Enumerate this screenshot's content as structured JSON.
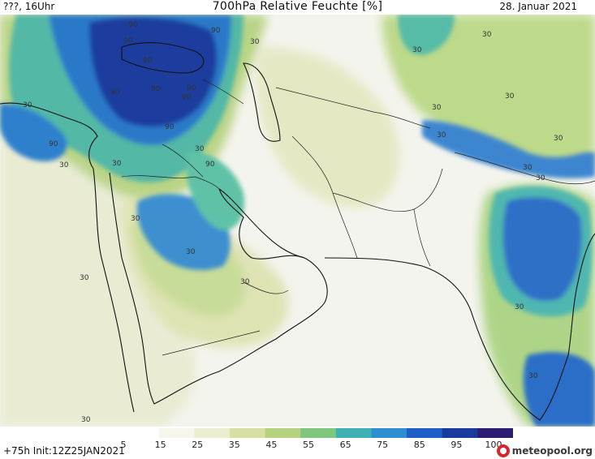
{
  "header": {
    "left": "???, 16Uhr",
    "title": "700hPa Relative Feuchte [%]",
    "date": "28. Januar 2021"
  },
  "footer": {
    "run_info": "+75h Init:12Z25JAN2021",
    "brand": "meteopool.org"
  },
  "legend": {
    "labels": [
      "5",
      "15",
      "25",
      "35",
      "45",
      "55",
      "65",
      "75",
      "85",
      "95",
      "100"
    ],
    "colors": [
      "#ffffff",
      "#f6f6ea",
      "#eceed0",
      "#d9dea3",
      "#b7d27f",
      "#7fc67f",
      "#3fb0b3",
      "#2e8ed2",
      "#1f5ec7",
      "#1b3a9e",
      "#2d1c72"
    ]
  },
  "map": {
    "contour_labels": [
      "90",
      "90",
      "90",
      "90",
      "90",
      "90",
      "90",
      "90",
      "90",
      "90",
      "90",
      "30",
      "30",
      "30",
      "30",
      "30",
      "30",
      "30",
      "30",
      "30",
      "30",
      "30",
      "30",
      "30",
      "30",
      "30",
      "30",
      "30",
      "30",
      "30",
      "30"
    ]
  }
}
